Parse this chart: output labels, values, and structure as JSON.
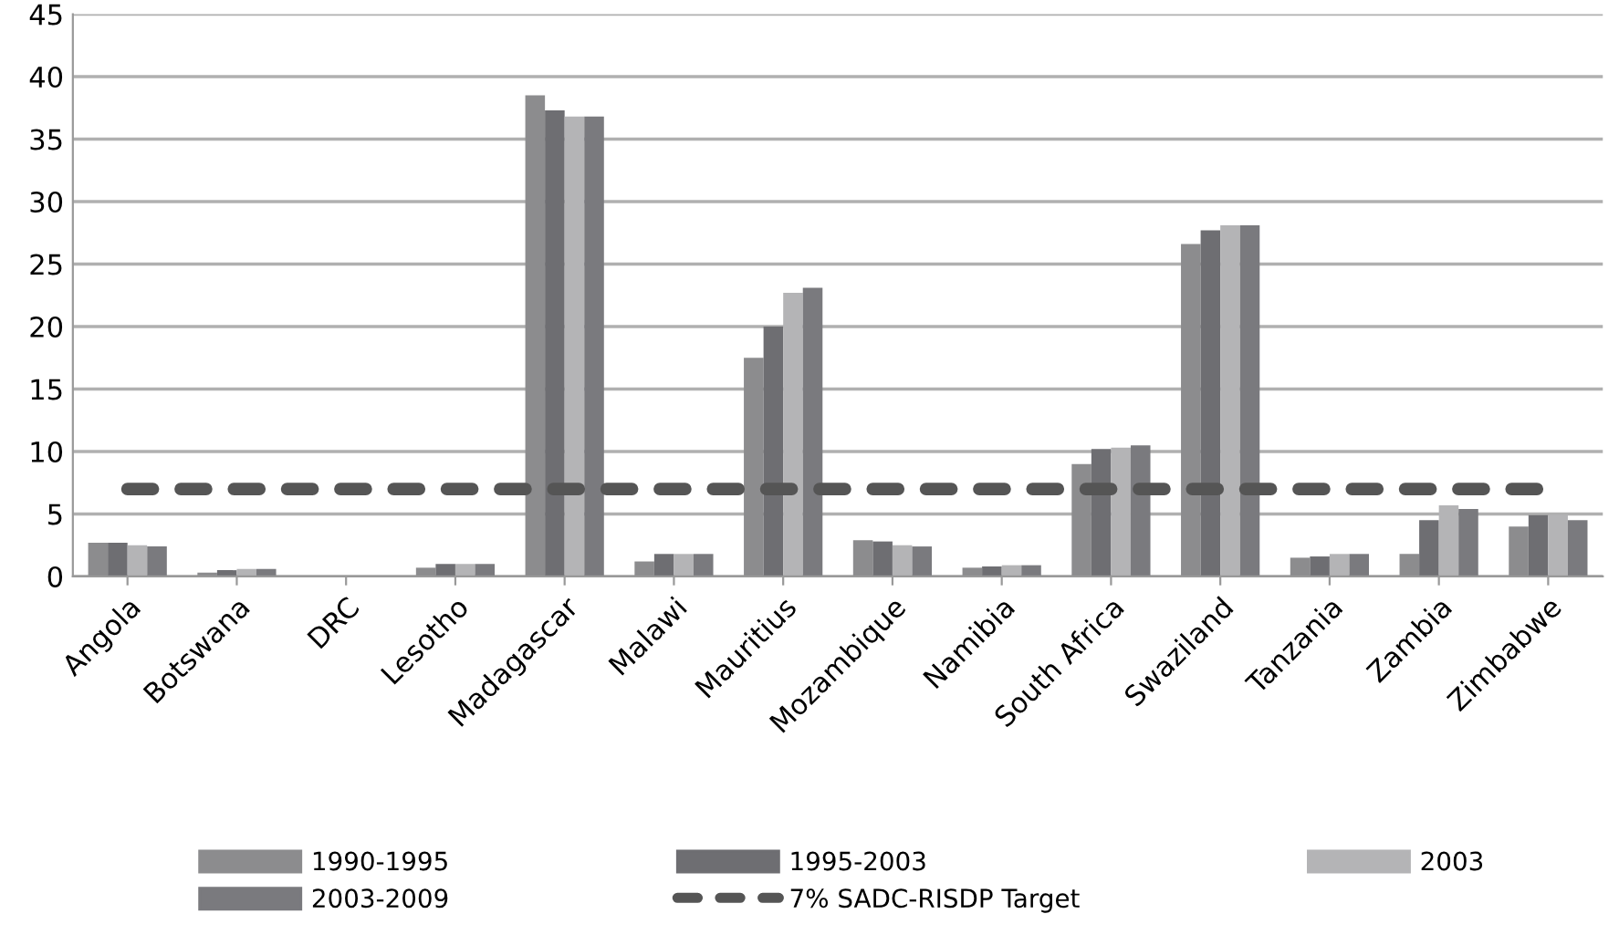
{
  "chart_data": {
    "type": "bar",
    "categories": [
      "Angola",
      "Botswana",
      "DRC",
      "Lesotho",
      "Madagascar",
      "Malawi",
      "Mauritius",
      "Mozambique",
      "Namibia",
      "South Africa",
      "Swaziland",
      "Tanzania",
      "Zambia",
      "Zimbabwe"
    ],
    "series": [
      {
        "name": "1990-1995",
        "color": "#8c8c8e",
        "values": [
          2.7,
          0.3,
          null,
          0.7,
          38.5,
          1.2,
          17.5,
          2.9,
          0.7,
          9.0,
          26.6,
          1.5,
          1.8,
          4.0
        ]
      },
      {
        "name": "1995-2003",
        "color": "#6e6e72",
        "values": [
          2.7,
          0.5,
          null,
          1.0,
          37.3,
          1.8,
          20.0,
          2.8,
          0.8,
          10.2,
          27.7,
          1.6,
          4.5,
          4.9
        ]
      },
      {
        "name": "2003",
        "color": "#b4b4b6",
        "values": [
          2.5,
          0.6,
          null,
          1.0,
          36.8,
          1.8,
          22.7,
          2.5,
          0.9,
          10.3,
          28.1,
          1.8,
          5.7,
          4.9
        ]
      },
      {
        "name": "2003-2009",
        "color": "#7a7a7e",
        "values": [
          2.4,
          0.6,
          null,
          1.0,
          36.8,
          1.8,
          23.1,
          2.4,
          0.9,
          10.5,
          28.1,
          1.8,
          5.4,
          4.5
        ]
      },
      {
        "name": "7% SADC-RISDP Target",
        "type": "line",
        "color": "#555555",
        "line_style": "dashed",
        "values": [
          7,
          7,
          7,
          7,
          7,
          7,
          7,
          7,
          7,
          7,
          7,
          7,
          7,
          7
        ]
      }
    ],
    "ylim": [
      0,
      45
    ],
    "yticks": [
      0,
      5,
      10,
      15,
      20,
      25,
      30,
      35,
      40,
      45
    ],
    "grid": "y",
    "legend": "bottom"
  }
}
